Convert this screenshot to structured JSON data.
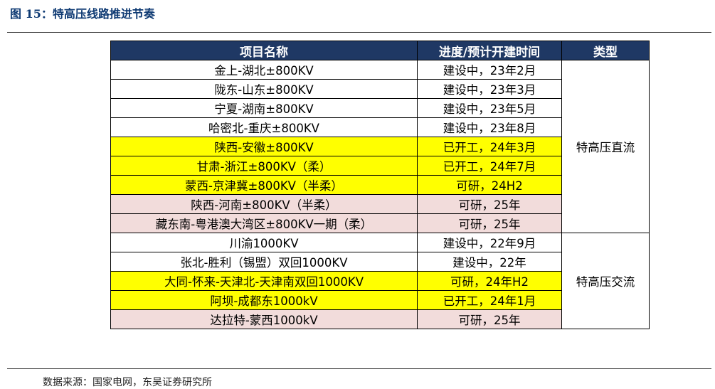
{
  "figure": {
    "title": "图 15：特高压线路推进节奏"
  },
  "table": {
    "headers": [
      "项目名称",
      "进度/预计开建时间",
      "类型"
    ],
    "rows": [
      {
        "name": "金上-湖北±800KV",
        "progress": "建设中，23年2月",
        "highlight": "none"
      },
      {
        "name": "陇东-山东±800KV",
        "progress": "建设中，23年3月",
        "highlight": "none"
      },
      {
        "name": "宁夏-湖南±800KV",
        "progress": "建设中，23年5月",
        "highlight": "none"
      },
      {
        "name": "哈密北-重庆±800KV",
        "progress": "建设中，23年8月",
        "highlight": "none"
      },
      {
        "name": "陕西-安徽±800KV",
        "progress": "已开工，24年3月",
        "highlight": "yellow"
      },
      {
        "name": "甘肃-浙江±800KV（柔）",
        "progress": "已开工，24年7月",
        "highlight": "yellow"
      },
      {
        "name": "蒙西-京津冀±800KV（半柔）",
        "progress": "可研，24H2",
        "highlight": "yellow"
      },
      {
        "name": "陕西-河南±800KV（半柔）",
        "progress": "可研，25年",
        "highlight": "pink"
      },
      {
        "name": "藏东南-粤港澳大湾区±800KV一期（柔）",
        "progress": "可研，25年",
        "highlight": "pink"
      },
      {
        "name": "川渝1000KV",
        "progress": "建设中，22年9月",
        "highlight": "none"
      },
      {
        "name": "张北-胜利（锡盟）双回1000KV",
        "progress": "建设中，22年",
        "highlight": "none"
      },
      {
        "name": "大同-怀来-天津北-天津南双回1000KV",
        "progress": "可研，24年H2",
        "highlight": "yellow"
      },
      {
        "name": "阿坝-成都东1000kV",
        "progress": "已开工，24年1月",
        "highlight": "yellow"
      },
      {
        "name": "达拉特-蒙西1000kV",
        "progress": "可研，25年",
        "highlight": "pink"
      }
    ],
    "types": [
      {
        "label": "特高压直流",
        "rowspan": 9
      },
      {
        "label": "特高压交流",
        "rowspan": 5
      }
    ]
  },
  "source": "数据来源：国家电网，东吴证券研究所",
  "colors": {
    "header_bg": "#1f3864",
    "title_text": "#0e3a73",
    "yellow": "#ffff00",
    "pink": "#f2dcdb"
  }
}
